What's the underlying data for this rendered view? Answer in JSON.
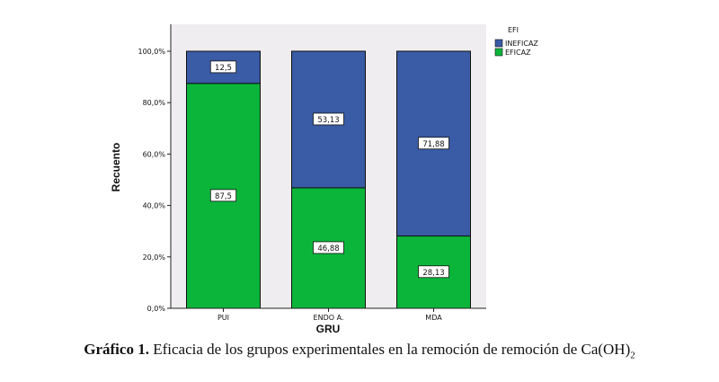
{
  "chart_data": {
    "type": "bar",
    "stacked": true,
    "categories": [
      "PUI",
      "ENDO A.",
      "MDA"
    ],
    "series": [
      {
        "name": "EFICAZ",
        "values": [
          87.5,
          46.88,
          28.13
        ],
        "labels": [
          "87,5",
          "46,88",
          "28,13"
        ],
        "color": "#0bb53a"
      },
      {
        "name": "INEFICAZ",
        "values": [
          12.5,
          53.13,
          71.88
        ],
        "labels": [
          "12,5",
          "53,13",
          "71,88"
        ],
        "color": "#3a5ba5"
      }
    ],
    "ylim": [
      0,
      100
    ],
    "yticks": [
      0,
      20,
      40,
      60,
      80,
      100
    ],
    "ytick_labels": [
      "0,0%",
      "20,0%",
      "40,0%",
      "60,0%",
      "80,0%",
      "100,0%"
    ],
    "xlabel": "GRU",
    "ylabel": "Recuento",
    "legend_title": "EFI",
    "legend_entries": [
      "INEFICAZ",
      "EFICAZ"
    ],
    "legend_position": "top-right",
    "plot_background": "#efedef",
    "grid": false
  },
  "caption": {
    "label": "Gráfico 1.",
    "text": " Eficacia de los grupos experimentales en la remoción de  remoción de Ca(OH)",
    "subscript": "2"
  }
}
